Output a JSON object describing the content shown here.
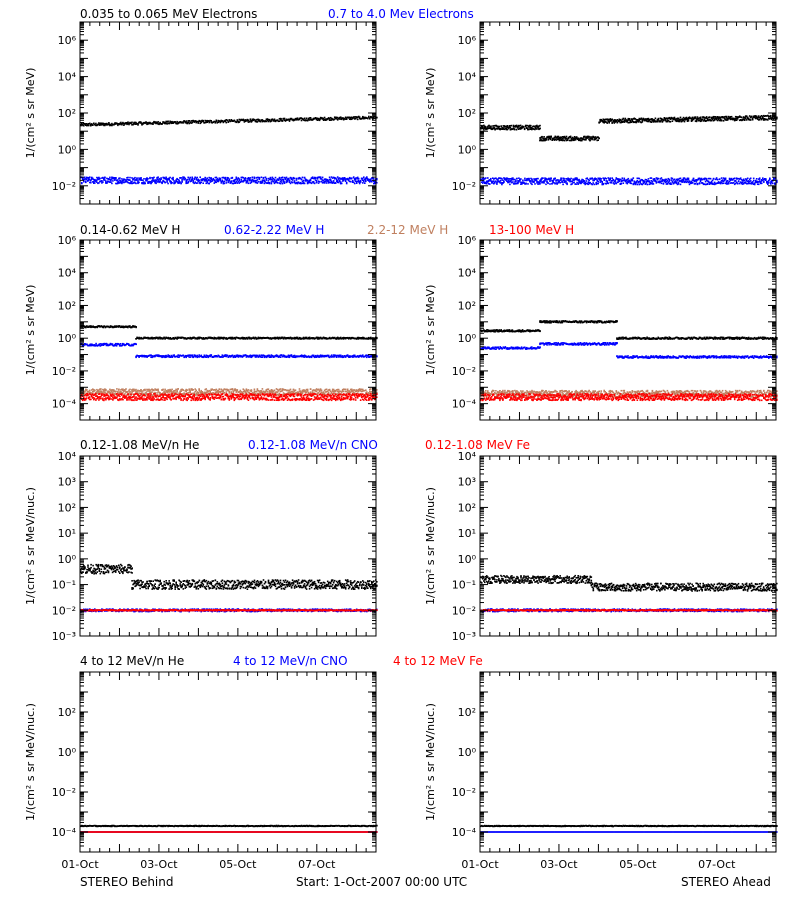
{
  "chart_data": [
    {
      "type": "scatter",
      "panel_row": 0,
      "panel_col": 0,
      "ylabel": "1/(cm² s sr MeV)",
      "ylim_log10": [
        -3,
        7
      ],
      "ytick_exponents": [
        -2,
        0,
        2,
        4,
        6
      ],
      "x_range_days": [
        0,
        7.5
      ],
      "xtick_labels": [],
      "series": [
        {
          "name": "0.035 to 0.065 MeV Electrons",
          "color": "#000000",
          "segments": [
            {
              "x": [
                0,
                7.5
              ],
              "log10_y": [
                1.35,
                1.75
              ]
            }
          ],
          "spread": 0.08
        },
        {
          "name": "0.7 to 4.0 Mev Electrons",
          "color": "#0000ff",
          "segments": [
            {
              "x": [
                0,
                7.5
              ],
              "log10_y": [
                -1.7,
                -1.7
              ]
            }
          ],
          "spread": 0.18
        }
      ]
    },
    {
      "type": "scatter",
      "panel_row": 0,
      "panel_col": 1,
      "ylabel": "1/(cm² s sr MeV)",
      "ylim_log10": [
        -3,
        7
      ],
      "ytick_exponents": [
        -2,
        0,
        2,
        4,
        6
      ],
      "x_range_days": [
        0,
        7.5
      ],
      "xtick_labels": [],
      "series": [
        {
          "color": "#000000",
          "segments": [
            {
              "x": [
                0,
                1.5
              ],
              "log10_y": [
                1.2,
                1.2
              ]
            },
            {
              "x": [
                1.5,
                3.0
              ],
              "log10_y": [
                0.6,
                0.6
              ]
            },
            {
              "x": [
                3.0,
                7.5
              ],
              "log10_y": [
                1.55,
                1.75
              ]
            }
          ],
          "spread": 0.12
        },
        {
          "color": "#0000ff",
          "segments": [
            {
              "x": [
                0,
                7.5
              ],
              "log10_y": [
                -1.75,
                -1.75
              ]
            }
          ],
          "spread": 0.18
        }
      ]
    },
    {
      "type": "scatter",
      "panel_row": 1,
      "panel_col": 0,
      "ylabel": "1/(cm² s sr MeV)",
      "ylim_log10": [
        -5,
        6
      ],
      "ytick_exponents": [
        -4,
        -2,
        0,
        2,
        4,
        6
      ],
      "x_range_days": [
        0,
        7.5
      ],
      "xtick_labels": [],
      "series": [
        {
          "name": "0.14-0.62 MeV H",
          "color": "#000000",
          "segments": [
            {
              "x": [
                0,
                1.4
              ],
              "log10_y": [
                0.7,
                0.7
              ]
            },
            {
              "x": [
                1.4,
                7.5
              ],
              "log10_y": [
                0.0,
                0.0
              ]
            }
          ],
          "spread": 0.05
        },
        {
          "name": "0.62-2.22 MeV H",
          "color": "#0000ff",
          "segments": [
            {
              "x": [
                0,
                1.4
              ],
              "log10_y": [
                -0.4,
                -0.4
              ]
            },
            {
              "x": [
                1.4,
                7.5
              ],
              "log10_y": [
                -1.1,
                -1.1
              ]
            }
          ],
          "spread": 0.07
        },
        {
          "name": "2.2-12 MeV H",
          "color": "#c08060",
          "segments": [
            {
              "x": [
                0,
                7.5
              ],
              "log10_y": [
                -3.3,
                -3.3
              ]
            }
          ],
          "spread": 0.2
        },
        {
          "name": "13-100 MeV H",
          "color": "#ff0000",
          "segments": [
            {
              "x": [
                0,
                7.5
              ],
              "log10_y": [
                -3.6,
                -3.6
              ]
            }
          ],
          "spread": 0.2
        }
      ]
    },
    {
      "type": "scatter",
      "panel_row": 1,
      "panel_col": 1,
      "ylabel": "1/(cm² s sr MeV)",
      "ylim_log10": [
        -5,
        6
      ],
      "ytick_exponents": [
        -4,
        -2,
        0,
        2,
        4,
        6
      ],
      "x_range_days": [
        0,
        7.5
      ],
      "xtick_labels": [],
      "series": [
        {
          "color": "#000000",
          "segments": [
            {
              "x": [
                0,
                1.5
              ],
              "log10_y": [
                0.45,
                0.45
              ]
            },
            {
              "x": [
                1.5,
                3.45
              ],
              "log10_y": [
                1.0,
                1.0
              ]
            },
            {
              "x": [
                3.45,
                7.5
              ],
              "log10_y": [
                0.0,
                0.0
              ]
            }
          ],
          "spread": 0.06
        },
        {
          "color": "#0000ff",
          "segments": [
            {
              "x": [
                0,
                1.5
              ],
              "log10_y": [
                -0.6,
                -0.6
              ]
            },
            {
              "x": [
                1.5,
                3.45
              ],
              "log10_y": [
                -0.35,
                -0.35
              ]
            },
            {
              "x": [
                3.45,
                7.5
              ],
              "log10_y": [
                -1.15,
                -1.15
              ]
            }
          ],
          "spread": 0.07
        },
        {
          "color": "#c08060",
          "segments": [
            {
              "x": [
                0,
                7.5
              ],
              "log10_y": [
                -3.4,
                -3.4
              ]
            }
          ],
          "spread": 0.2
        },
        {
          "color": "#ff0000",
          "segments": [
            {
              "x": [
                0,
                7.5
              ],
              "log10_y": [
                -3.6,
                -3.6
              ]
            }
          ],
          "spread": 0.2
        }
      ]
    },
    {
      "type": "scatter",
      "panel_row": 2,
      "panel_col": 0,
      "ylabel": "1/(cm² s sr MeV/nuc.)",
      "ylim_log10": [
        -3,
        4
      ],
      "ytick_exponents": [
        -3,
        -2,
        -1,
        0,
        1,
        2,
        3,
        4
      ],
      "x_range_days": [
        0,
        7.5
      ],
      "xtick_labels": [],
      "series": [
        {
          "name": "0.12-1.08 MeV/n He",
          "color": "#000000",
          "segments": [
            {
              "x": [
                0,
                1.3
              ],
              "log10_y": [
                -0.4,
                -0.4
              ]
            },
            {
              "x": [
                1.3,
                7.5
              ],
              "log10_y": [
                -1.0,
                -1.0
              ]
            }
          ],
          "spread": 0.18
        },
        {
          "name": "0.12-1.08 MeV/n CNO",
          "color": "#0000ff",
          "segments": [
            {
              "x": [
                0,
                7.5
              ],
              "log10_y": [
                -2.0,
                -2.0
              ]
            }
          ],
          "spread": 0.05
        },
        {
          "name": "0.12-1.08 MeV Fe",
          "color": "#ff0000",
          "segments": [
            {
              "x": [
                0,
                7.5
              ],
              "log10_y": [
                -2.0,
                -2.0
              ]
            }
          ],
          "spread": 0.02
        }
      ]
    },
    {
      "type": "scatter",
      "panel_row": 2,
      "panel_col": 1,
      "ylabel": "1/(cm² s sr MeV/nuc.)",
      "ylim_log10": [
        -3,
        4
      ],
      "ytick_exponents": [
        -3,
        -2,
        -1,
        0,
        1,
        2,
        3,
        4
      ],
      "x_range_days": [
        0,
        7.5
      ],
      "xtick_labels": [],
      "series": [
        {
          "color": "#000000",
          "segments": [
            {
              "x": [
                0,
                2.8
              ],
              "log10_y": [
                -0.8,
                -0.8
              ]
            },
            {
              "x": [
                2.8,
                7.5
              ],
              "log10_y": [
                -1.1,
                -1.1
              ]
            }
          ],
          "spread": 0.15
        },
        {
          "color": "#0000ff",
          "segments": [
            {
              "x": [
                0,
                7.5
              ],
              "log10_y": [
                -2.0,
                -2.0
              ]
            }
          ],
          "spread": 0.05
        },
        {
          "color": "#ff0000",
          "segments": [
            {
              "x": [
                0,
                7.5
              ],
              "log10_y": [
                -2.0,
                -2.0
              ]
            }
          ],
          "spread": 0.02
        }
      ]
    },
    {
      "type": "scatter",
      "panel_row": 3,
      "panel_col": 0,
      "ylabel": "1/(cm² s sr MeV/nuc.)",
      "ylim_log10": [
        -5,
        4
      ],
      "ytick_exponents": [
        -4,
        -2,
        0,
        2
      ],
      "x_range_days": [
        0,
        7.5
      ],
      "xtick_labels": [
        "01-Oct",
        "03-Oct",
        "05-Oct",
        "07-Oct"
      ],
      "xtick_days": [
        0,
        2,
        4,
        6
      ],
      "series": [
        {
          "name": "4 to 12 MeV/n He",
          "color": "#000000",
          "segments": [
            {
              "x": [
                0,
                7.5
              ],
              "log10_y": [
                -3.7,
                -3.7
              ]
            }
          ],
          "spread": 0.02
        },
        {
          "name": "4 to 12 MeV/n CNO",
          "color": "#0000ff",
          "segments": [
            {
              "x": [
                0,
                7.5
              ],
              "log10_y": [
                -4.0,
                -4.0
              ]
            }
          ],
          "spread": 0.0
        },
        {
          "name": "4 to 12 MeV Fe",
          "color": "#ff0000",
          "segments": [
            {
              "x": [
                0,
                7.5
              ],
              "log10_y": [
                -4.0,
                -4.0
              ]
            }
          ],
          "spread": 0.0
        }
      ]
    },
    {
      "type": "scatter",
      "panel_row": 3,
      "panel_col": 1,
      "ylabel": "1/(cm² s sr MeV/nuc.)",
      "ylim_log10": [
        -5,
        4
      ],
      "ytick_exponents": [
        -4,
        -2,
        0,
        2
      ],
      "x_range_days": [
        0,
        7.5
      ],
      "xtick_labels": [
        "01-Oct",
        "03-Oct",
        "05-Oct",
        "07-Oct"
      ],
      "xtick_days": [
        0,
        2,
        4,
        6
      ],
      "series": [
        {
          "color": "#000000",
          "segments": [
            {
              "x": [
                0,
                7.5
              ],
              "log10_y": [
                -3.7,
                -3.7
              ]
            }
          ],
          "spread": 0.02
        },
        {
          "color": "#0000ff",
          "segments": [
            {
              "x": [
                0,
                7.5
              ],
              "log10_y": [
                -4.0,
                -4.0
              ]
            }
          ],
          "spread": 0.0
        }
      ]
    }
  ],
  "footer": {
    "left": "STEREO Behind",
    "center": "Start:  1-Oct-2007 00:00 UTC",
    "right": "STEREO Ahead"
  }
}
